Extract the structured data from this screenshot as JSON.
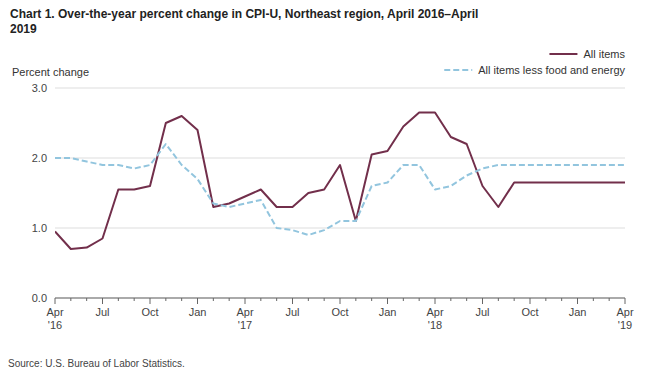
{
  "chart_data": {
    "type": "line",
    "title": "Chart 1. Over-the-year percent change in CPI-U, Northeast region, April 2016–April\n2019",
    "y_label": "Percent change",
    "source": "Source: U.S. Bureau of Labor Statistics.",
    "categories": [
      "Apr\n'16",
      null,
      null,
      "Jul",
      null,
      null,
      "Oct",
      null,
      null,
      "Jan",
      null,
      null,
      "Apr\n'17",
      null,
      null,
      "Jul",
      null,
      null,
      "Oct",
      null,
      null,
      "Jan",
      null,
      null,
      "Apr\n'18",
      null,
      null,
      "Jul",
      null,
      null,
      "Oct",
      null,
      null,
      "Jan",
      null,
      null,
      "Apr\n'19"
    ],
    "series": [
      {
        "name": "All items",
        "color": "#722F4B",
        "line_style": "solid",
        "values": [
          0.95,
          0.7,
          0.72,
          0.85,
          1.55,
          1.55,
          1.6,
          2.5,
          2.6,
          2.4,
          1.3,
          1.35,
          1.45,
          1.55,
          1.3,
          1.3,
          1.5,
          1.55,
          1.9,
          1.1,
          2.05,
          2.1,
          2.45,
          2.65,
          2.65,
          2.3,
          2.2,
          1.6,
          1.3,
          1.65,
          1.65,
          1.65,
          1.65,
          1.65,
          1.65,
          1.65,
          1.65
        ]
      },
      {
        "name": "All items less food and energy",
        "color": "#92C5DE",
        "line_style": "dashed",
        "values": [
          2.0,
          2.0,
          1.95,
          1.9,
          1.9,
          1.85,
          1.9,
          2.2,
          1.9,
          1.7,
          1.35,
          1.3,
          1.35,
          1.4,
          1.0,
          0.97,
          0.9,
          0.97,
          1.1,
          1.1,
          1.6,
          1.65,
          1.9,
          1.9,
          1.55,
          1.6,
          1.75,
          1.85,
          1.9,
          1.9,
          1.9,
          1.9,
          1.9,
          1.9,
          1.9,
          1.9,
          1.9
        ]
      }
    ],
    "ylim": [
      0.0,
      3.0
    ],
    "yticks": [
      {
        "value": 0.0,
        "label": "0.0"
      },
      {
        "value": 1.0,
        "label": "1.0"
      },
      {
        "value": 2.0,
        "label": "2.0"
      },
      {
        "value": 3.0,
        "label": "3.0"
      }
    ],
    "grid": true,
    "legend": "upper right"
  }
}
